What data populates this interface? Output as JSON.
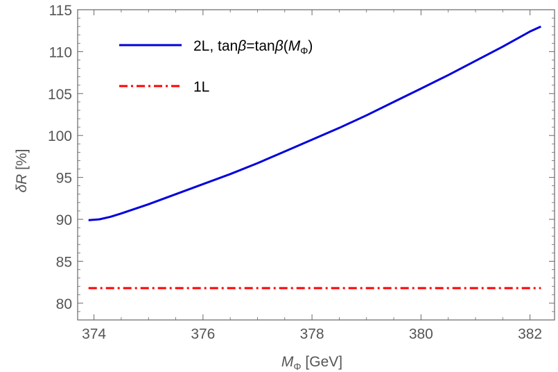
{
  "chart_data": {
    "type": "line",
    "xlabel": {
      "main": "M",
      "sub": "Φ",
      "unit": " [GeV]"
    },
    "ylabel": {
      "main": "δR",
      "unit": " [%]"
    },
    "xlim": [
      373.7,
      382.45
    ],
    "ylim": [
      78,
      115
    ],
    "xticks": [
      374,
      376,
      378,
      380,
      382
    ],
    "yticks": [
      80,
      85,
      90,
      95,
      100,
      105,
      110,
      115
    ],
    "grid": false,
    "legend_position": "top-left",
    "series": [
      {
        "name": "2L, tanβ=tanβ(MΦ)",
        "legend": {
          "prefix": "2L, tan",
          "beta1": "β",
          "mid": "=tan",
          "beta2": "β",
          "open": "(",
          "var": "M",
          "sub": "Φ",
          "close": ")"
        },
        "color": "#0000dd",
        "style": "solid",
        "x": [
          373.9,
          374.1,
          374.3,
          374.5,
          375.0,
          375.5,
          376.0,
          376.5,
          377.0,
          377.5,
          378.0,
          378.5,
          379.0,
          379.5,
          380.0,
          380.5,
          381.0,
          381.5,
          382.0,
          382.2
        ],
        "y": [
          89.9,
          90.0,
          90.3,
          90.7,
          91.8,
          93.0,
          94.2,
          95.4,
          96.7,
          98.1,
          99.5,
          100.9,
          102.4,
          104.0,
          105.6,
          107.2,
          108.9,
          110.6,
          112.4,
          113.0
        ]
      },
      {
        "name": "1L",
        "color": "#ff0000",
        "style": "dashdot",
        "x": [
          373.9,
          382.2
        ],
        "y": [
          81.8,
          81.8
        ]
      }
    ]
  }
}
